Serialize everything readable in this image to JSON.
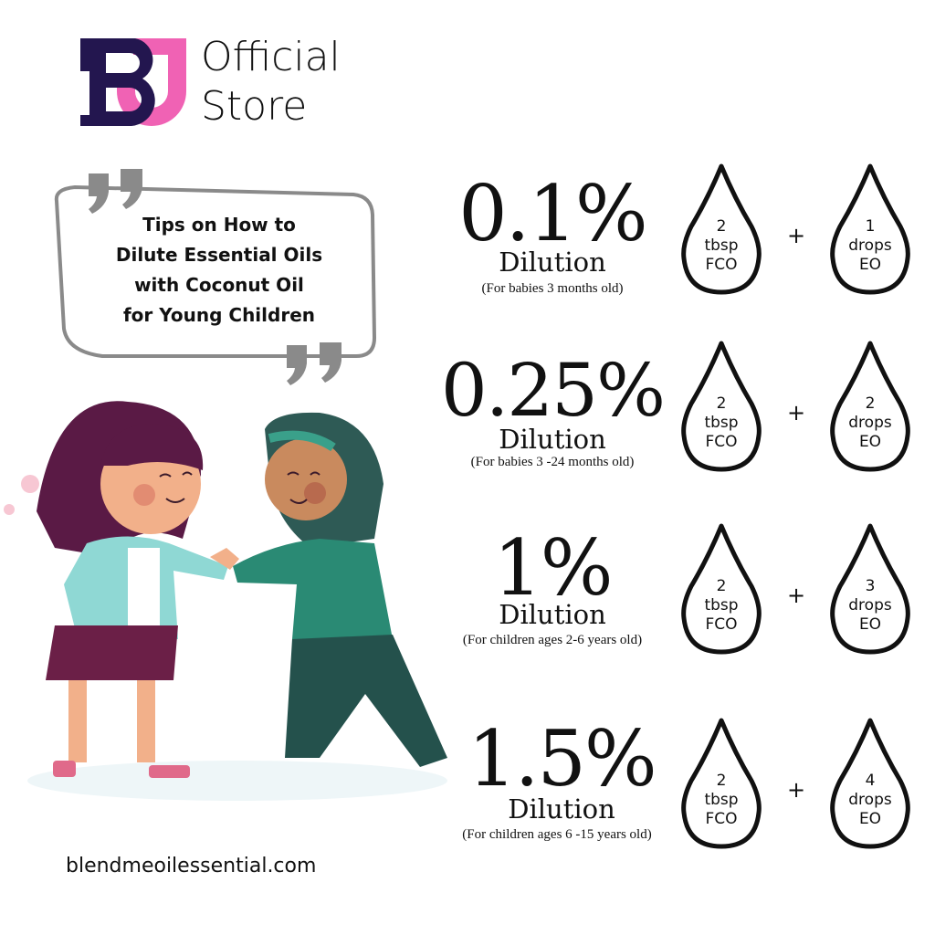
{
  "brand": {
    "logo_letters": "BJ",
    "store_line1": "Official",
    "store_line2": "Store",
    "colors": {
      "navy": "#23164f",
      "pink": "#f062b4"
    }
  },
  "title": {
    "lines": [
      "Tips on How to",
      "Dilute Essential Oils",
      "with Coconut Oil",
      "for Young Children"
    ]
  },
  "website": "blendmeoilessential.com",
  "plus_sign": "+",
  "rows": [
    {
      "percent": "0.1%",
      "label": "Dilution",
      "note": "(For babies 3 months old)",
      "carrier": {
        "amount": "2",
        "unit": "tbsp",
        "name": "FCO"
      },
      "oil": {
        "amount": "1",
        "unit": "drops",
        "name": "EO"
      }
    },
    {
      "percent": "0.25%",
      "label": "Dilution",
      "note": "(For babies 3 -24 months old)",
      "carrier": {
        "amount": "2",
        "unit": "tbsp",
        "name": "FCO"
      },
      "oil": {
        "amount": "2",
        "unit": "drops",
        "name": "EO"
      }
    },
    {
      "percent": "1%",
      "label": "Dilution",
      "note": "(For children ages 2-6 years old)",
      "carrier": {
        "amount": "2",
        "unit": "tbsp",
        "name": "FCO"
      },
      "oil": {
        "amount": "3",
        "unit": "drops",
        "name": "EO"
      }
    },
    {
      "percent": "1.5%",
      "label": "Dilution",
      "note": "(For children ages 6 -15 years old)",
      "carrier": {
        "amount": "2",
        "unit": "tbsp",
        "name": "FCO"
      },
      "oil": {
        "amount": "4",
        "unit": "drops",
        "name": "EO"
      }
    }
  ]
}
